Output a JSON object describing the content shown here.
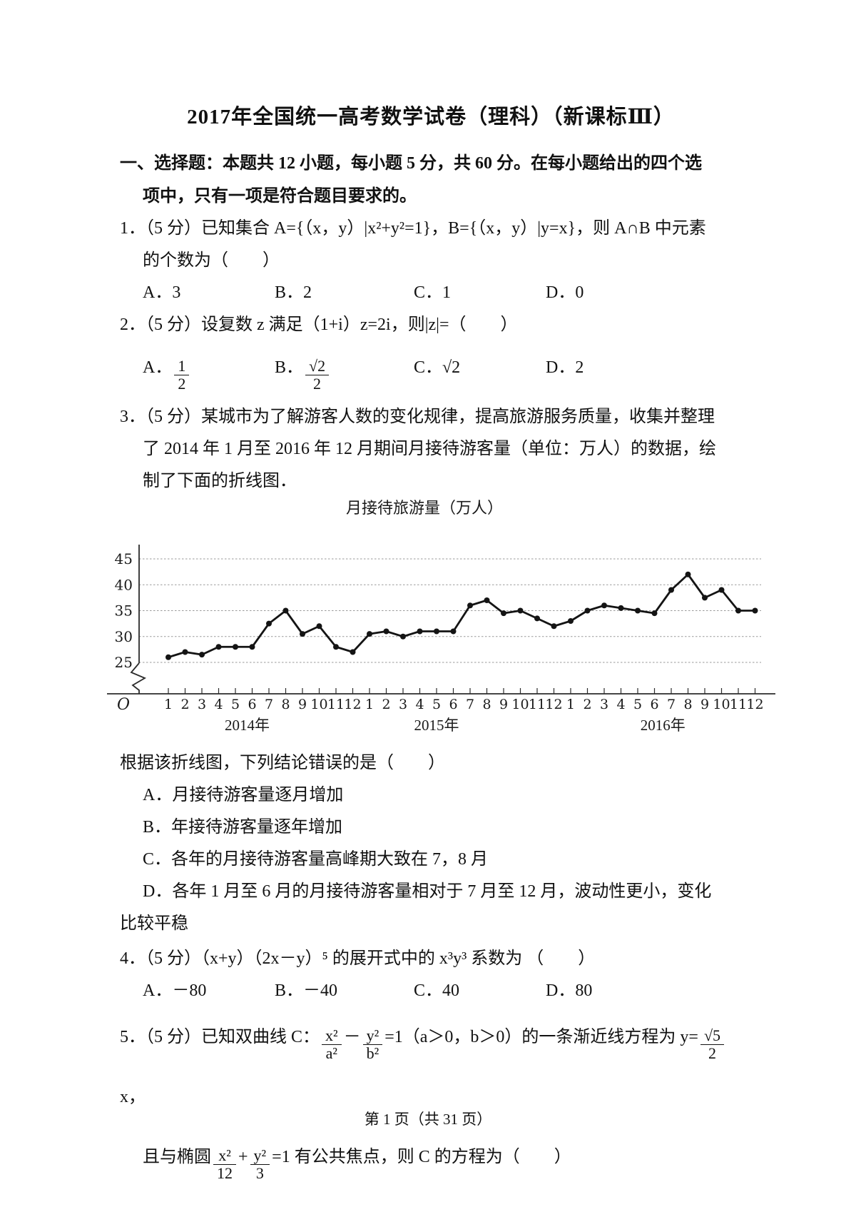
{
  "page": {
    "title": "2017年全国统一高考数学试卷（理科）（新课标Ⅲ）",
    "footer": "第 1 页（共 31 页）"
  },
  "heading": {
    "line1": "一、选择题：本题共 12 小题，每小题 5 分，共 60 分。在每小题给出的四个选",
    "line2": "项中，只有一项是符合题目要求的。"
  },
  "questions": {
    "q1": {
      "line1": "1．（5 分）已知集合 A={（x，y）|x²+y²=1}，B={（x，y）|y=x}，则 A∩B 中元素",
      "line2": "的个数为（　　）",
      "optA": "A．3",
      "optB": "B．2",
      "optC": "C．1",
      "optD": "D．0"
    },
    "q2": {
      "stem": "2．（5 分）设复数 z 满足（1+i）z=2i，则|z|=（　　）",
      "optA_label": "A．",
      "optA_num": "1",
      "optA_den": "2",
      "optB_label": "B．",
      "optB_num": "√2",
      "optB_den": "2",
      "optC": "C．√2",
      "optD": "D．2"
    },
    "q3": {
      "line1": "3．（5 分）某城市为了解游客人数的变化规律，提高旅游服务质量，收集并整理",
      "line2": "了 2014 年 1 月至 2016 年 12 月期间月接待游客量（单位：万人）的数据，绘",
      "line3": "制了下面的折线图．",
      "followup": "根据该折线图，下列结论错误的是（　　）",
      "optA": "A．月接待游客量逐月增加",
      "optB": "B．年接待游客量逐年增加",
      "optC": "C．各年的月接待游客量高峰期大致在 7，8 月",
      "optD_line1": "D．各年 1 月至 6 月的月接待游客量相对于 7 月至 12 月，波动性更小，变化",
      "optD_line2": "比较平稳"
    },
    "q4": {
      "stem": "4．（5 分）（x+y）（2x－y）⁵ 的展开式中的 x³y³ 系数为 （　　）",
      "optA": "A．－80",
      "optB": "B．－40",
      "optC": "C．40",
      "optD": "D．80"
    },
    "q5": {
      "part1": "5．（5 分）已知双曲线 C：",
      "f1_num": "x²",
      "f1_den": "a²",
      "minus": "－",
      "f2_num": "y²",
      "f2_den": "b²",
      "part2": "=1（a＞0，b＞0）的一条渐近线方程为 y=",
      "f3_num": "√5",
      "f3_den": "2",
      "part3": "x，",
      "part4": "且与椭圆",
      "f4_num": "x²",
      "f4_den": "12",
      "plus": "+",
      "f5_num": "y²",
      "f5_den": "3",
      "part5": "=1 有公共焦点，则 C 的方程为（　　）"
    }
  },
  "chart_data": {
    "type": "line",
    "title": "月接待旅游量（万人）",
    "xlabel": "",
    "ylabel": "",
    "y_ticks": [
      45,
      40,
      35,
      30,
      25
    ],
    "ylim": [
      25,
      45
    ],
    "axis_break": true,
    "grid": true,
    "origin_label": "O",
    "month_labels": [
      "1",
      "2",
      "3",
      "4",
      "5",
      "6",
      "7",
      "8",
      "9",
      "10",
      "11",
      "12"
    ],
    "year_labels": [
      "2014年",
      "2015年",
      "2016年"
    ],
    "series": [
      {
        "name": "月接待游客量",
        "values": [
          26,
          27,
          26.5,
          28,
          28,
          28,
          32.5,
          35,
          30.5,
          32,
          28,
          27,
          30.5,
          31,
          30,
          31,
          31,
          31,
          36,
          37,
          34.5,
          35,
          33.5,
          32,
          33,
          35,
          36,
          35.5,
          35,
          34.5,
          39,
          42,
          37.5,
          39,
          35,
          35
        ]
      }
    ]
  }
}
